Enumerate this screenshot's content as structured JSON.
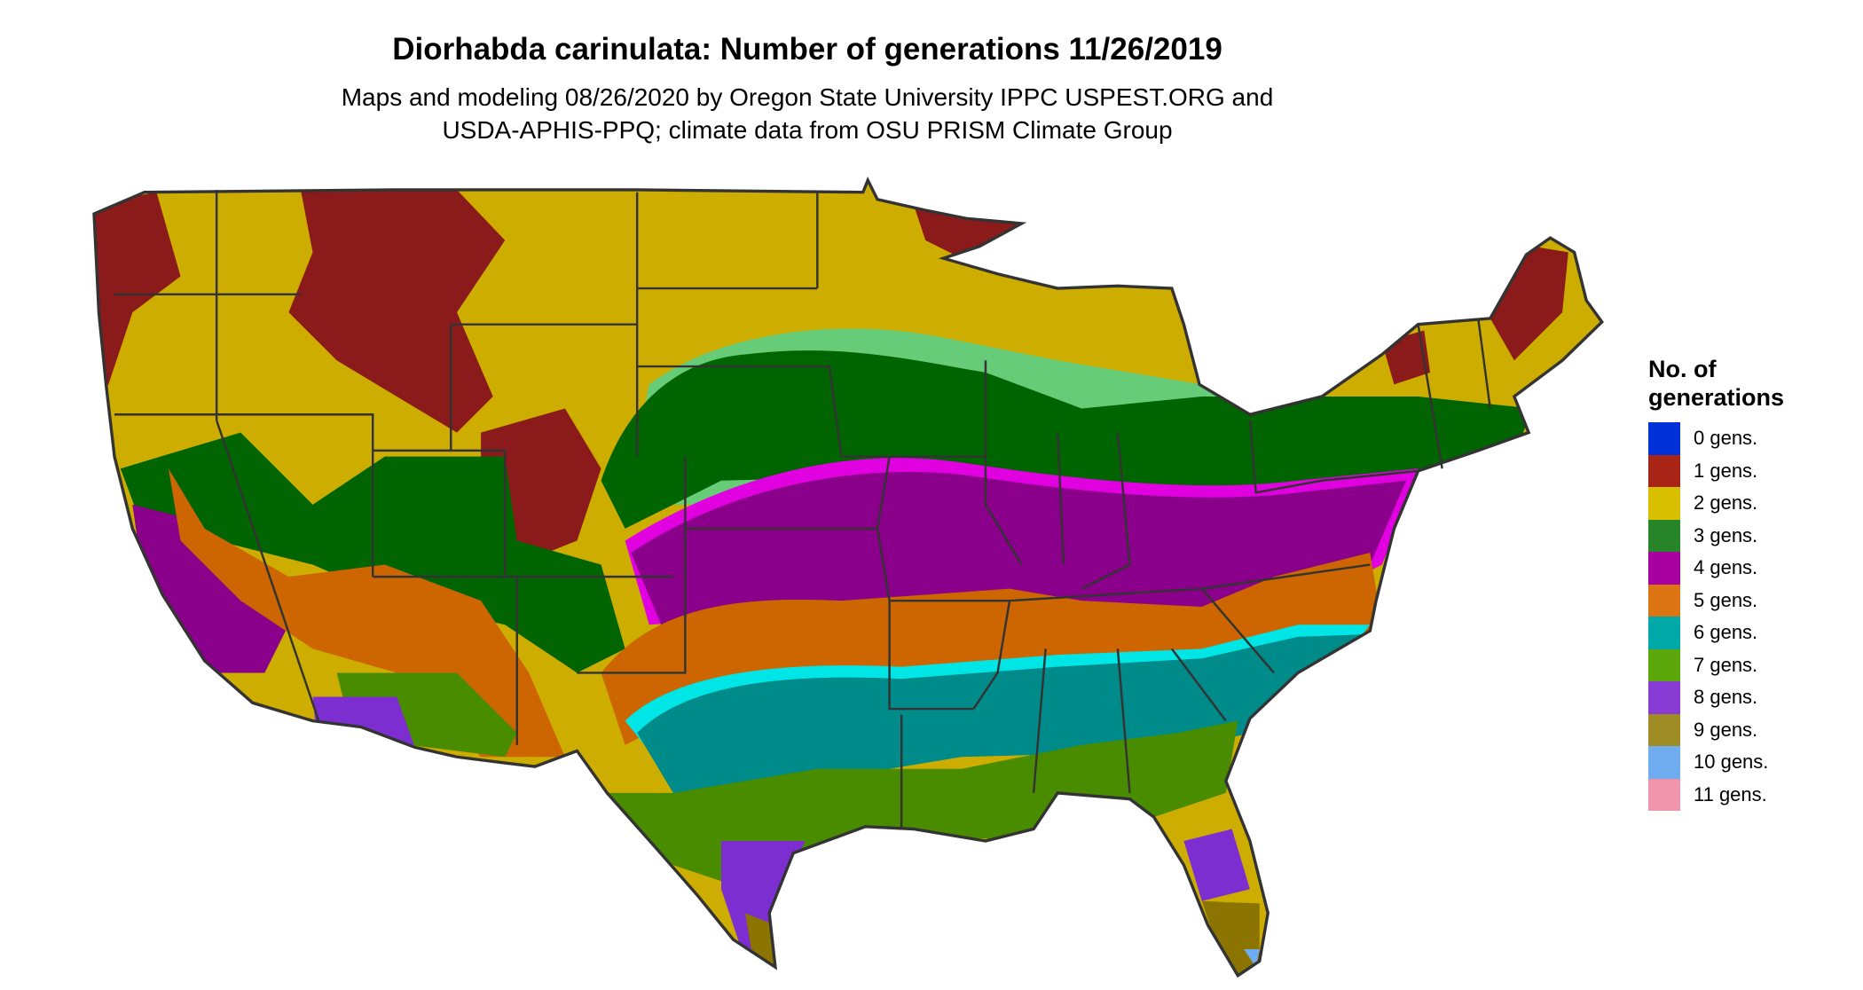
{
  "title": "Diorhabda carinulata: Number of generations 11/26/2019",
  "subtitle_line1": "Maps and modeling 08/26/2020 by Oregon State University IPPC USPEST.ORG and",
  "subtitle_line2": "USDA-APHIS-PPQ; climate data from OSU PRISM Climate Group",
  "legend": {
    "title_line1": "No. of",
    "title_line2": "generations",
    "items": [
      {
        "label": "0 gens.",
        "color": "#0030d8"
      },
      {
        "label": "1 gens.",
        "color": "#a82416"
      },
      {
        "label": "2 gens.",
        "color": "#d8c000"
      },
      {
        "label": "3 gens.",
        "color": "#288428"
      },
      {
        "label": "4 gens.",
        "color": "#a800a0"
      },
      {
        "label": "5 gens.",
        "color": "#dc7414"
      },
      {
        "label": "6 gens.",
        "color": "#00a8a8"
      },
      {
        "label": "7 gens.",
        "color": "#5ca80c"
      },
      {
        "label": "8 gens.",
        "color": "#883cd4"
      },
      {
        "label": "9 gens.",
        "color": "#a08c24"
      },
      {
        "label": "10 gens.",
        "color": "#70acf0"
      },
      {
        "label": "11 gens.",
        "color": "#f094ac"
      }
    ]
  },
  "map_colors": {
    "gen0": "#1a1aff",
    "gen1": "#8b1a1a",
    "gen2": "#cdad00",
    "gen3": "#006400",
    "gen3_light": "#66cc77",
    "gen4": "#8b008b",
    "gen4_edge": "#e000e0",
    "gen5": "#cd6600",
    "gen6": "#008b8b",
    "gen6_edge": "#00e5e5",
    "gen7": "#4a8c00",
    "gen8": "#7d2ed0",
    "gen9": "#8b7500",
    "border": "#333333"
  }
}
